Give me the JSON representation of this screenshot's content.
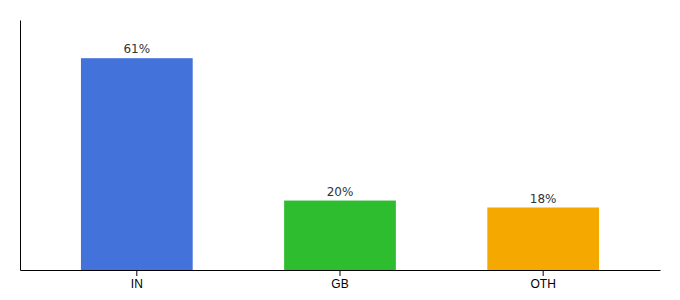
{
  "chart_data": {
    "type": "bar",
    "categories": [
      "IN",
      "GB",
      "OTH"
    ],
    "values": [
      61,
      20,
      18
    ],
    "value_labels": [
      "61%",
      "20%",
      "18%"
    ],
    "colors": [
      "#4472db",
      "#2ebd2e",
      "#f5a800"
    ],
    "ylim": [
      0,
      72
    ],
    "data_labels": true,
    "tick_labels": "x",
    "grid": false
  }
}
